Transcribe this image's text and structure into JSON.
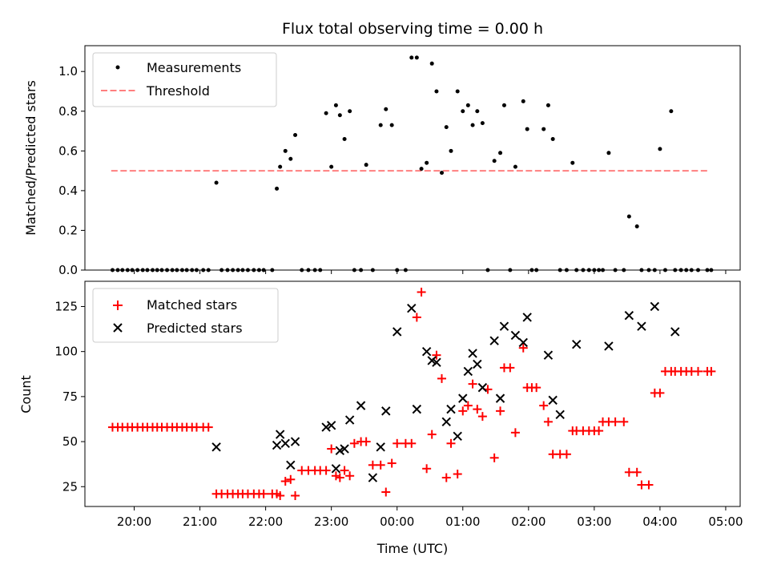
{
  "figure": {
    "title": "Flux total observing time = 0.00 h",
    "xlabel": "Time (UTC)"
  },
  "chart_data": [
    {
      "type": "scatter",
      "ylabel": "Matched/Predicted stars",
      "ylim": [
        0,
        1.13
      ],
      "yticks": [
        "0.0",
        "0.2",
        "0.4",
        "0.6",
        "0.8",
        "1.0"
      ],
      "grid": false,
      "legend": "top-left",
      "threshold": {
        "name": "Threshold",
        "value": 0.5,
        "x_from": -0.35,
        "x_to": 8.75,
        "color": "#ff7f7f"
      },
      "series": [
        {
          "name": "Measurements",
          "color": "#000000",
          "x": [
            -0.33,
            -0.25,
            -0.18,
            -0.1,
            -0.03,
            0.05,
            0.13,
            0.2,
            0.28,
            0.35,
            0.42,
            0.5,
            0.58,
            0.65,
            0.73,
            0.8,
            0.88,
            0.95,
            1.05,
            1.13,
            1.25,
            1.33,
            1.42,
            1.5,
            1.58,
            1.65,
            1.73,
            1.82,
            1.9,
            1.97,
            2.1,
            2.17,
            2.22,
            2.3,
            2.38,
            2.45,
            2.55,
            2.65,
            2.75,
            2.83,
            2.92,
            3.0,
            3.07,
            3.13,
            3.2,
            3.28,
            3.35,
            3.45,
            3.53,
            3.63,
            3.75,
            3.83,
            3.92,
            4.0,
            4.13,
            4.22,
            4.3,
            4.37,
            4.45,
            4.53,
            4.6,
            4.68,
            4.75,
            4.82,
            4.92,
            5.0,
            5.08,
            5.15,
            5.22,
            5.3,
            5.38,
            5.48,
            5.57,
            5.63,
            5.72,
            5.8,
            5.92,
            5.98,
            6.05,
            6.12,
            6.23,
            6.3,
            6.37,
            6.48,
            6.58,
            6.67,
            6.73,
            6.83,
            6.92,
            7.0,
            7.07,
            7.13,
            7.22,
            7.32,
            7.45,
            7.53,
            7.65,
            7.72,
            7.83,
            7.92,
            8.0,
            8.08,
            8.17,
            8.23,
            8.32,
            8.4,
            8.48,
            8.58,
            8.72,
            8.78
          ],
          "y": [
            0,
            0,
            0,
            0,
            0,
            0,
            0,
            0,
            0,
            0,
            0,
            0,
            0,
            0,
            0,
            0,
            0,
            0,
            0,
            0,
            0.44,
            0,
            0,
            0,
            0,
            0,
            0,
            0,
            0,
            0,
            0,
            0.41,
            0.52,
            0.6,
            0.56,
            0.68,
            0,
            0,
            0,
            0,
            0.79,
            0.52,
            0.83,
            0.78,
            0.66,
            0.8,
            0,
            0,
            0.53,
            0,
            0.73,
            0.81,
            0.73,
            0,
            0,
            1.07,
            1.07,
            0.51,
            0.54,
            1.04,
            0.9,
            0.49,
            0.72,
            0.6,
            0.9,
            0.8,
            0.83,
            0.73,
            0.8,
            0.74,
            0,
            0.55,
            0.59,
            0.83,
            0,
            0.52,
            0.85,
            0.71,
            0,
            0,
            0.71,
            0.83,
            0.66,
            0,
            0,
            0.54,
            0,
            0,
            0,
            0,
            0,
            0,
            0.59,
            0,
            0,
            0.27,
            0.22,
            0,
            0,
            0,
            0.61,
            0,
            0.8,
            0,
            0,
            0,
            0,
            0,
            0,
            0
          ]
        }
      ]
    },
    {
      "type": "scatter",
      "ylabel": "Count",
      "ylim": [
        14,
        139
      ],
      "yticks": [
        "25",
        "50",
        "75",
        "100",
        "125"
      ],
      "grid": false,
      "legend": "top-left",
      "series": [
        {
          "name": "Matched stars",
          "marker": "plus",
          "color": "#ff0000",
          "x": [
            -0.33,
            -0.25,
            -0.18,
            -0.1,
            -0.03,
            0.05,
            0.13,
            0.2,
            0.28,
            0.35,
            0.42,
            0.5,
            0.58,
            0.65,
            0.73,
            0.8,
            0.88,
            0.95,
            1.05,
            1.13,
            1.25,
            1.33,
            1.42,
            1.5,
            1.58,
            1.65,
            1.73,
            1.82,
            1.9,
            1.97,
            2.1,
            2.17,
            2.22,
            2.3,
            2.38,
            2.45,
            2.55,
            2.65,
            2.75,
            2.83,
            2.92,
            3.0,
            3.07,
            3.13,
            3.2,
            3.28,
            3.35,
            3.45,
            3.53,
            3.63,
            3.75,
            3.83,
            3.92,
            4.0,
            4.13,
            4.22,
            4.3,
            4.37,
            4.45,
            4.53,
            4.6,
            4.68,
            4.75,
            4.82,
            4.92,
            5.0,
            5.08,
            5.15,
            5.22,
            5.3,
            5.38,
            5.48,
            5.57,
            5.63,
            5.72,
            5.8,
            5.92,
            5.98,
            6.05,
            6.12,
            6.23,
            6.3,
            6.37,
            6.48,
            6.58,
            6.67,
            6.73,
            6.83,
            6.92,
            7.0,
            7.07,
            7.13,
            7.22,
            7.32,
            7.45,
            7.53,
            7.65,
            7.72,
            7.83,
            7.92,
            8.0,
            8.08,
            8.17,
            8.23,
            8.32,
            8.4,
            8.48,
            8.58,
            8.72,
            8.78
          ],
          "y": [
            58,
            58,
            58,
            58,
            58,
            58,
            58,
            58,
            58,
            58,
            58,
            58,
            58,
            58,
            58,
            58,
            58,
            58,
            58,
            58,
            21,
            21,
            21,
            21,
            21,
            21,
            21,
            21,
            21,
            21,
            21,
            21,
            20,
            28,
            29,
            20,
            34,
            34,
            34,
            34,
            34,
            46,
            31,
            30,
            34,
            31,
            49,
            50,
            50,
            37,
            37,
            22,
            38,
            49,
            49,
            49,
            119,
            133,
            35,
            54,
            98,
            85,
            30,
            49,
            32,
            67,
            70,
            82,
            68,
            64,
            79,
            41,
            67,
            91,
            91,
            55,
            102,
            80,
            80,
            80,
            70,
            61,
            43,
            43,
            43,
            56,
            56,
            56,
            56,
            56,
            56,
            61,
            61,
            61,
            61,
            33,
            33,
            26,
            26,
            77,
            77,
            89,
            89,
            89,
            89,
            89,
            89,
            89,
            89,
            89
          ]
        },
        {
          "name": "Predicted stars",
          "marker": "x",
          "color": "#000000",
          "x": [
            1.25,
            2.17,
            2.22,
            2.3,
            2.38,
            2.45,
            2.92,
            3.0,
            3.07,
            3.13,
            3.2,
            3.28,
            3.45,
            3.63,
            3.75,
            3.83,
            4.0,
            4.22,
            4.3,
            4.45,
            4.53,
            4.6,
            4.75,
            4.82,
            4.92,
            5.0,
            5.08,
            5.15,
            5.22,
            5.3,
            5.48,
            5.57,
            5.63,
            5.8,
            5.92,
            5.98,
            6.3,
            6.37,
            6.48,
            6.73,
            7.22,
            7.53,
            7.72,
            7.92,
            8.23
          ],
          "y": [
            47,
            48,
            54,
            49,
            37,
            50,
            58,
            59,
            35,
            45,
            46,
            62,
            70,
            30,
            47,
            67,
            111,
            124,
            68,
            100,
            95,
            94,
            61,
            68,
            53,
            74,
            89,
            99,
            93,
            80,
            106,
            74,
            114,
            109,
            105,
            119,
            98,
            73,
            65,
            104,
            103,
            120,
            114,
            125,
            111
          ]
        }
      ]
    }
  ],
  "xaxis": {
    "ticks": [
      {
        "pos": 0,
        "label": "20:00"
      },
      {
        "pos": 1,
        "label": "21:00"
      },
      {
        "pos": 2,
        "label": "22:00"
      },
      {
        "pos": 3,
        "label": "23:00"
      },
      {
        "pos": 4,
        "label": "00:00"
      },
      {
        "pos": 5,
        "label": "01:00"
      },
      {
        "pos": 6,
        "label": "02:00"
      },
      {
        "pos": 7,
        "label": "03:00"
      },
      {
        "pos": 8,
        "label": "04:00"
      },
      {
        "pos": 9,
        "label": "05:00"
      }
    ],
    "xlim": [
      -0.75,
      9.22
    ]
  }
}
